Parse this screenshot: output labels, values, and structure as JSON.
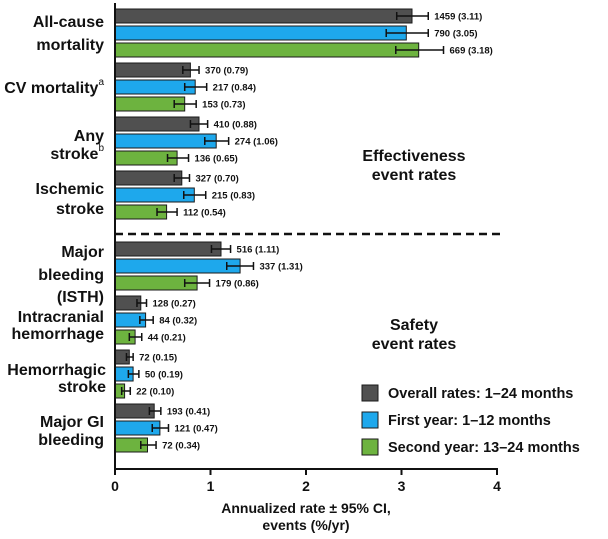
{
  "chart_data": {
    "type": "bar",
    "orientation": "horizontal",
    "xlabel": [
      "Annualized rate ± 95% CI,",
      "events (%/yr)"
    ],
    "xlim": [
      0,
      4
    ],
    "xticks": [
      0,
      1,
      2,
      3,
      4
    ],
    "legend_position": "bottom-right",
    "colors": {
      "overall": "#505050",
      "first": "#1ea8ec",
      "second": "#6db33f",
      "error": "#111111"
    },
    "series": [
      {
        "key": "overall",
        "name": "Overall rates: 1–24 months"
      },
      {
        "key": "first",
        "name": "First year: 1–12 months"
      },
      {
        "key": "second",
        "name": "Second year: 13–24 months"
      }
    ],
    "sections": [
      {
        "name": "effectiveness",
        "label": [
          "Effectiveness",
          "event rates"
        ]
      },
      {
        "name": "safety",
        "label": [
          "Safety",
          "event rates"
        ]
      }
    ],
    "categories": [
      {
        "lines": [
          "All-cause",
          "mortality"
        ],
        "sup": "",
        "section": "effectiveness",
        "bars": [
          {
            "value": 3.11,
            "ci": [
              2.95,
              3.28
            ],
            "label": "1459 (3.11)"
          },
          {
            "value": 3.05,
            "ci": [
              2.84,
              3.28
            ],
            "label": "790 (3.05)"
          },
          {
            "value": 3.18,
            "ci": [
              2.94,
              3.44
            ],
            "label": "669 (3.18)"
          }
        ]
      },
      {
        "lines": [
          "CV mortality"
        ],
        "sup": "a",
        "section": "effectiveness",
        "bars": [
          {
            "value": 0.79,
            "ci": [
              0.71,
              0.88
            ],
            "label": "370 (0.79)"
          },
          {
            "value": 0.84,
            "ci": [
              0.73,
              0.96
            ],
            "label": "217 (0.84)"
          },
          {
            "value": 0.73,
            "ci": [
              0.62,
              0.85
            ],
            "label": "153 (0.73)"
          }
        ]
      },
      {
        "lines": [
          "Any",
          "stroke"
        ],
        "sup": "b",
        "section": "effectiveness",
        "bars": [
          {
            "value": 0.88,
            "ci": [
              0.79,
              0.97
            ],
            "label": "410 (0.88)"
          },
          {
            "value": 1.06,
            "ci": [
              0.94,
              1.19
            ],
            "label": "274 (1.06)"
          },
          {
            "value": 0.65,
            "ci": [
              0.55,
              0.77
            ],
            "label": "136 (0.65)"
          }
        ]
      },
      {
        "lines": [
          "Ischemic",
          "stroke"
        ],
        "sup": "",
        "section": "effectiveness",
        "bars": [
          {
            "value": 0.7,
            "ci": [
              0.62,
              0.78
            ],
            "label": "327 (0.70)"
          },
          {
            "value": 0.83,
            "ci": [
              0.72,
              0.95
            ],
            "label": "215 (0.83)"
          },
          {
            "value": 0.54,
            "ci": [
              0.44,
              0.65
            ],
            "label": "112 (0.54)"
          }
        ]
      },
      {
        "lines": [
          "Major",
          "bleeding",
          "(ISTH)"
        ],
        "sup": "",
        "section": "safety",
        "bars": [
          {
            "value": 1.11,
            "ci": [
              1.01,
              1.21
            ],
            "label": "516 (1.11)"
          },
          {
            "value": 1.31,
            "ci": [
              1.17,
              1.45
            ],
            "label": "337 (1.31)"
          },
          {
            "value": 0.86,
            "ci": [
              0.73,
              0.99
            ],
            "label": "179 (0.86)"
          }
        ]
      },
      {
        "lines": [
          "Intracranial",
          "hemorrhage"
        ],
        "sup": "",
        "section": "safety",
        "bars": [
          {
            "value": 0.27,
            "ci": [
              0.23,
              0.33
            ],
            "label": "128 (0.27)"
          },
          {
            "value": 0.32,
            "ci": [
              0.26,
              0.4
            ],
            "label": "84 (0.32)"
          },
          {
            "value": 0.21,
            "ci": [
              0.15,
              0.28
            ],
            "label": "44 (0.21)"
          }
        ]
      },
      {
        "lines": [
          "Hemorrhagic",
          "stroke"
        ],
        "sup": "",
        "section": "safety",
        "bars": [
          {
            "value": 0.15,
            "ci": [
              0.12,
              0.19
            ],
            "label": "72 (0.15)"
          },
          {
            "value": 0.19,
            "ci": [
              0.14,
              0.25
            ],
            "label": "50 (0.19)"
          },
          {
            "value": 0.1,
            "ci": [
              0.07,
              0.16
            ],
            "label": "22 (0.10)"
          }
        ]
      },
      {
        "lines": [
          "Major GI",
          "bleeding"
        ],
        "sup": "",
        "section": "safety",
        "bars": [
          {
            "value": 0.41,
            "ci": [
              0.36,
              0.48
            ],
            "label": "193 (0.41)"
          },
          {
            "value": 0.47,
            "ci": [
              0.39,
              0.56
            ],
            "label": "121 (0.47)"
          },
          {
            "value": 0.34,
            "ci": [
              0.27,
              0.43
            ],
            "label": "72 (0.34)"
          }
        ]
      }
    ]
  }
}
